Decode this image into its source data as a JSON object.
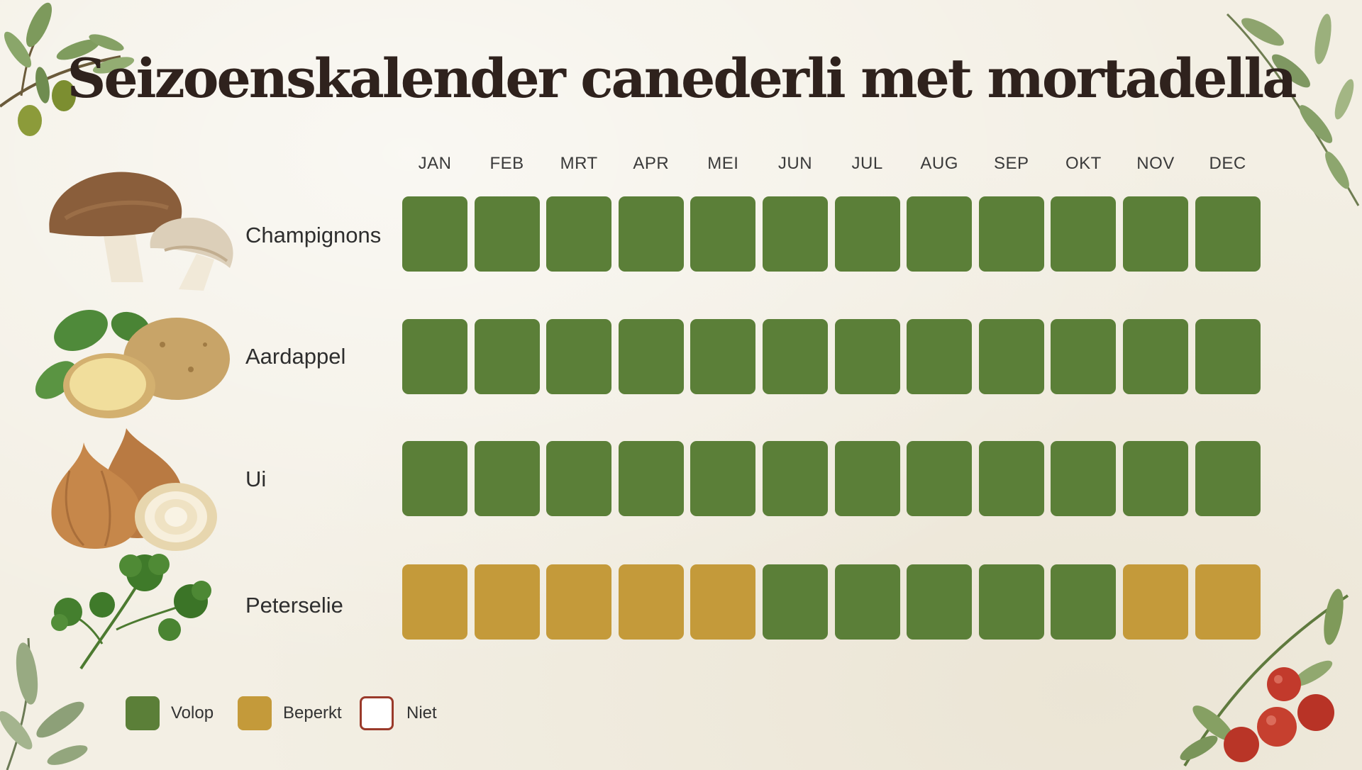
{
  "title": "Seizoenskalender canederli met mortadella",
  "colors": {
    "volop": "#5b7f38",
    "beperkt": "#c49a3a",
    "niet_border": "#9a3a2a",
    "niet_fill": "#ffffff",
    "background": "#f3efe4",
    "title_text": "#2f221d"
  },
  "chart_data": {
    "type": "heatmap",
    "title": "Seizoenskalender canederli met mortadella",
    "months": [
      "JAN",
      "FEB",
      "MRT",
      "APR",
      "MEI",
      "JUN",
      "JUL",
      "AUG",
      "SEP",
      "OKT",
      "NOV",
      "DEC"
    ],
    "rows": [
      {
        "name": "Champignons",
        "icon": "mushroom-icon",
        "values": [
          "volop",
          "volop",
          "volop",
          "volop",
          "volop",
          "volop",
          "volop",
          "volop",
          "volop",
          "volop",
          "volop",
          "volop"
        ]
      },
      {
        "name": "Aardappel",
        "icon": "potato-icon",
        "values": [
          "volop",
          "volop",
          "volop",
          "volop",
          "volop",
          "volop",
          "volop",
          "volop",
          "volop",
          "volop",
          "volop",
          "volop"
        ]
      },
      {
        "name": "Ui",
        "icon": "onion-icon",
        "values": [
          "volop",
          "volop",
          "volop",
          "volop",
          "volop",
          "volop",
          "volop",
          "volop",
          "volop",
          "volop",
          "volop",
          "volop"
        ]
      },
      {
        "name": "Peterselie",
        "icon": "parsley-icon",
        "values": [
          "beperkt",
          "beperkt",
          "beperkt",
          "beperkt",
          "beperkt",
          "volop",
          "volop",
          "volop",
          "volop",
          "volop",
          "beperkt",
          "beperkt"
        ]
      }
    ],
    "legend": [
      {
        "key": "volop",
        "label": "Volop"
      },
      {
        "key": "beperkt",
        "label": "Beperkt"
      },
      {
        "key": "niet",
        "label": "Niet"
      }
    ]
  },
  "decorations": [
    "olive-branch-icon",
    "herb-sprig-icon",
    "tomato-vine-icon",
    "sage-leaf-icon"
  ]
}
